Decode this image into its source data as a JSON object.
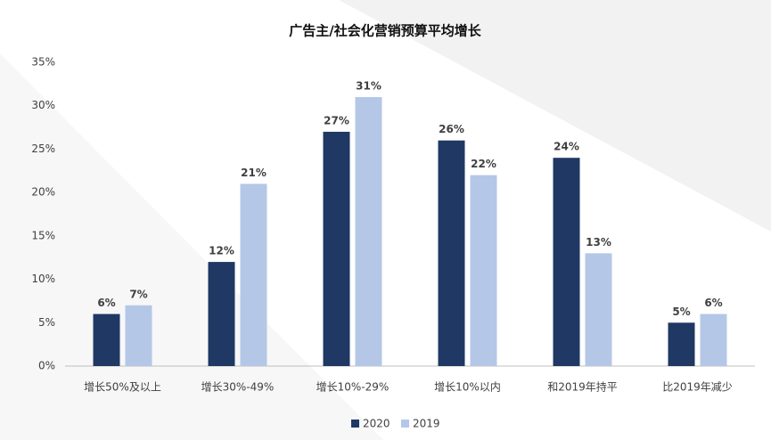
{
  "chart_data": {
    "type": "bar",
    "title": "广告主/社会化营销预算平均增长",
    "categories": [
      "增长50%及以上",
      "增长30%-49%",
      "增长10%-29%",
      "增长10%以内",
      "和2019年持平",
      "比2019年减少"
    ],
    "series": [
      {
        "name": "2020",
        "color": "#1f3864",
        "values": [
          6,
          12,
          27,
          26,
          24,
          5
        ],
        "value_labels": [
          "6%",
          "12%",
          "27%",
          "26%",
          "24%",
          "5%"
        ]
      },
      {
        "name": "2019",
        "color": "#b4c7e7",
        "values": [
          7,
          21,
          31,
          22,
          13,
          6
        ],
        "value_labels": [
          "7%",
          "21%",
          "31%",
          "22%",
          "13%",
          "6%"
        ]
      }
    ],
    "ylim": [
      0,
      35
    ],
    "yticks": [
      {
        "value": 0,
        "label": "0%"
      },
      {
        "value": 5,
        "label": "5%"
      },
      {
        "value": 10,
        "label": "10%"
      },
      {
        "value": 15,
        "label": "15%"
      },
      {
        "value": 20,
        "label": "20%"
      },
      {
        "value": 25,
        "label": "25%"
      },
      {
        "value": 30,
        "label": "30%"
      },
      {
        "value": 35,
        "label": "35%"
      }
    ],
    "grid": false,
    "legend": "bottom"
  }
}
